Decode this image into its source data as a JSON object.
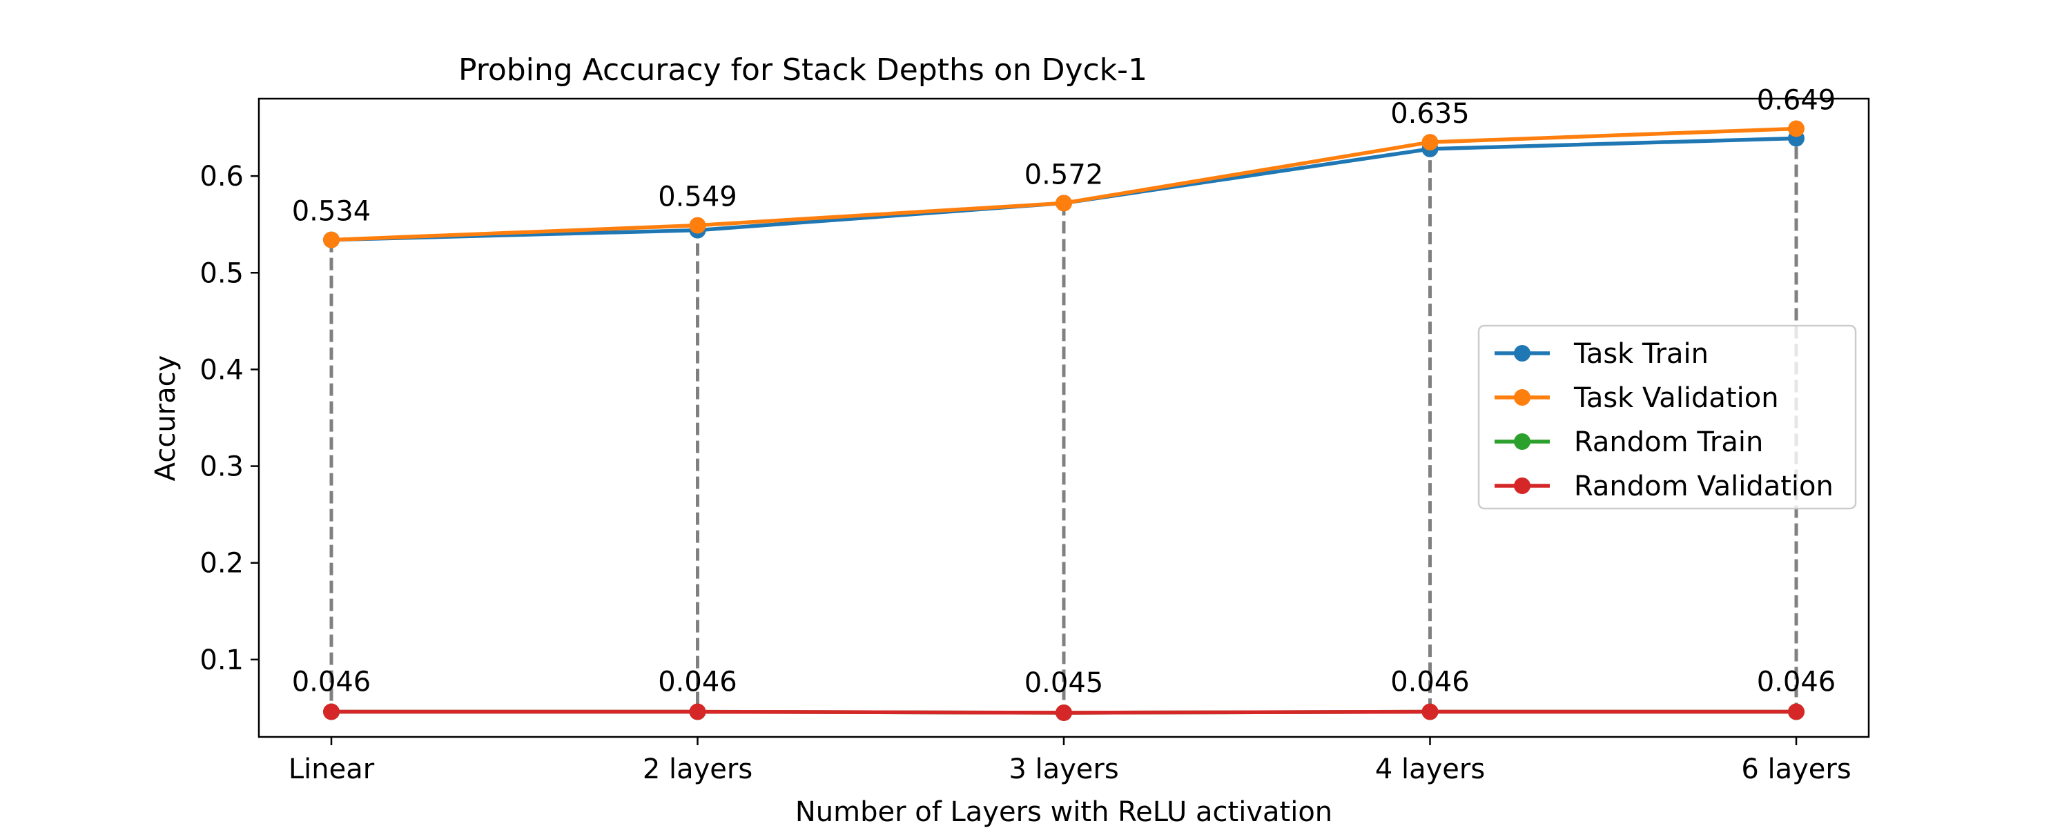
{
  "chart_data": {
    "type": "line",
    "title": "Probing Accuracy for Stack Depths on Dyck-1",
    "xlabel": "Number of Layers with ReLU activation",
    "ylabel": "Accuracy",
    "categories": [
      "Linear",
      "2 layers",
      "3 layers",
      "4 layers",
      "6 layers"
    ],
    "ylim": [
      0.02,
      0.68
    ],
    "yticks": [
      "0.1",
      "0.2",
      "0.3",
      "0.4",
      "0.5",
      "0.6"
    ],
    "grid": false,
    "legend_position": "center-right",
    "series": [
      {
        "name": "Task Train",
        "color": "#1f77b4",
        "values": [
          0.534,
          0.544,
          0.572,
          0.628,
          0.639
        ]
      },
      {
        "name": "Task Validation",
        "color": "#ff7f0e",
        "values": [
          0.534,
          0.549,
          0.572,
          0.635,
          0.649
        ]
      },
      {
        "name": "Random Train",
        "color": "#2ca02c",
        "values": [
          0.046,
          0.046,
          0.045,
          0.046,
          0.046
        ]
      },
      {
        "name": "Random Validation",
        "color": "#d62728",
        "values": [
          0.046,
          0.046,
          0.045,
          0.046,
          0.046
        ]
      }
    ],
    "annotations": {
      "top": [
        "0.534",
        "0.549",
        "0.572",
        "0.635",
        "0.649"
      ],
      "bottom": [
        "0.046",
        "0.046",
        "0.045",
        "0.046",
        "0.046"
      ]
    },
    "connector_color": "#808080"
  }
}
